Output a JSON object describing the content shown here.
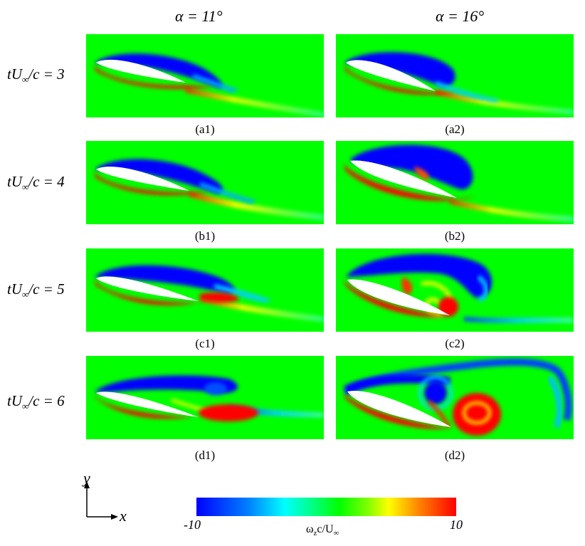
{
  "columns": [
    "α = 11°",
    "α = 16°"
  ],
  "rows": [
    {
      "prefix": "tU",
      "sub": "∞",
      "suffix": "/c = 3"
    },
    {
      "prefix": "tU",
      "sub": "∞",
      "suffix": "/c = 4"
    },
    {
      "prefix": "tU",
      "sub": "∞",
      "suffix": "/c = 5"
    },
    {
      "prefix": "tU",
      "sub": "∞",
      "suffix": "/c = 6"
    }
  ],
  "captions": {
    "a1": "(a1)",
    "a2": "(a2)",
    "b1": "(b1)",
    "b2": "(b2)",
    "c1": "(c1)",
    "c2": "(c2)",
    "d1": "(d1)",
    "d2": "(d2)"
  },
  "axes": {
    "y": "y",
    "x": "x"
  },
  "colorbar": {
    "min": "-10",
    "max": "10",
    "label_main": "ω",
    "label_sub": "z",
    "label_mid": "c/U",
    "label_sub2": "∞",
    "colors": [
      "#0000ff",
      "#00ffff",
      "#00ff00",
      "#ffff00",
      "#ff0000"
    ]
  },
  "field_background_color": "#00ff00"
}
